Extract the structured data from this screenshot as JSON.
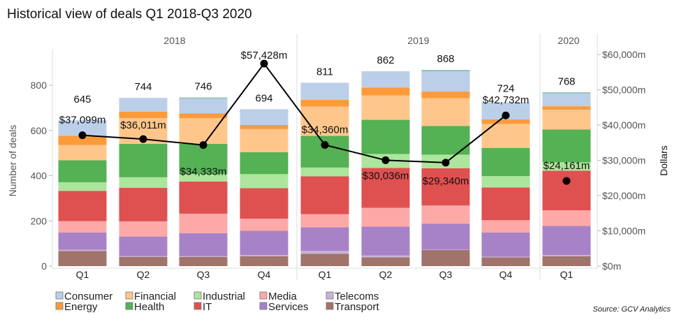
{
  "chart_data": {
    "type": "bar",
    "stacked": true,
    "title": "Historical view of deals Q1 2018-Q3 2020",
    "source": "Source: GCV Analytics",
    "ylabel": "Number of deals",
    "y2label": "Dollars",
    "ylim": [
      0,
      936
    ],
    "y2lim": [
      0,
      60000
    ],
    "yticks": [
      "0",
      "200",
      "400",
      "600",
      "800"
    ],
    "y2ticks": [
      "$0m",
      "$10,000m",
      "$20,000m",
      "$30,000m",
      "$40,000m",
      "$50,000m",
      "$60,000m"
    ],
    "grid": false,
    "legend_position": "bottom-left",
    "years": [
      {
        "label": "2018",
        "quarters": [
          "Q1",
          "Q2",
          "Q3",
          "Q4"
        ]
      },
      {
        "label": "2019",
        "quarters": [
          "Q1",
          "Q2",
          "Q3",
          "Q4"
        ]
      },
      {
        "label": "2020",
        "quarters": [
          "Q1"
        ]
      }
    ],
    "categories": [
      "Q1 2018",
      "Q2 2018",
      "Q3 2018",
      "Q4 2018",
      "Q1 2019",
      "Q2 2019",
      "Q3 2019",
      "Q4 2019",
      "Q1 2020"
    ],
    "totals": [
      645,
      744,
      746,
      694,
      811,
      862,
      868,
      724,
      768
    ],
    "series": [
      {
        "name": "Transport",
        "color": "#a0746b",
        "values": [
          67,
          41,
          41,
          44,
          55,
          39,
          71,
          39,
          44
        ]
      },
      {
        "name": "Telecoms",
        "color": "#c8b3d8",
        "values": [
          5,
          3,
          3,
          5,
          12,
          8,
          2,
          3,
          5
        ]
      },
      {
        "name": "Services",
        "color": "#a882c7",
        "values": [
          77,
          87,
          102,
          107,
          105,
          128,
          115,
          107,
          129
        ]
      },
      {
        "name": "Media",
        "color": "#fda9a8",
        "values": [
          50,
          67,
          86,
          54,
          58,
          83,
          80,
          54,
          69
        ]
      },
      {
        "name": "IT",
        "color": "#df5050",
        "values": [
          134,
          148,
          142,
          135,
          167,
          176,
          165,
          145,
          175
        ]
      },
      {
        "name": "Industrial",
        "color": "#ace59c",
        "values": [
          38,
          47,
          33,
          62,
          39,
          62,
          60,
          50,
          37
        ]
      },
      {
        "name": "Health",
        "color": "#54b154",
        "values": [
          97,
          148,
          134,
          97,
          140,
          151,
          127,
          125,
          145
        ]
      },
      {
        "name": "Financial",
        "color": "#ffc68c",
        "values": [
          68,
          114,
          114,
          102,
          130,
          108,
          123,
          106,
          87
        ]
      },
      {
        "name": "Energy",
        "color": "#fd9a3a",
        "values": [
          40,
          28,
          20,
          18,
          29,
          35,
          29,
          20,
          16
        ]
      },
      {
        "name": "Consumer",
        "color": "#bccfe9",
        "values": [
          69,
          61,
          64,
          70,
          76,
          72,
          88,
          75,
          55
        ]
      },
      {
        "color": "#99c3c0",
        "values": [
          0,
          0,
          7,
          0,
          0,
          0,
          8,
          0,
          7
        ]
      }
    ],
    "line": {
      "axis": "right",
      "color": "#000000",
      "values": [
        37099,
        36011,
        34333,
        57428,
        34360,
        30036,
        29340,
        42732,
        24161
      ],
      "labels": [
        "$37,099m",
        "$36,011m",
        "$34,333m",
        "$57,428m",
        "$34,360m",
        "$30,036m",
        "$29,340m",
        "$42,732m",
        "$24,161m"
      ],
      "connected_through": "Q4 2019"
    },
    "legend_order": [
      "Consumer",
      "Energy",
      "Financial",
      "Health",
      "Industrial",
      "IT",
      "Media",
      "Services",
      "Telecoms",
      "Transport"
    ]
  }
}
